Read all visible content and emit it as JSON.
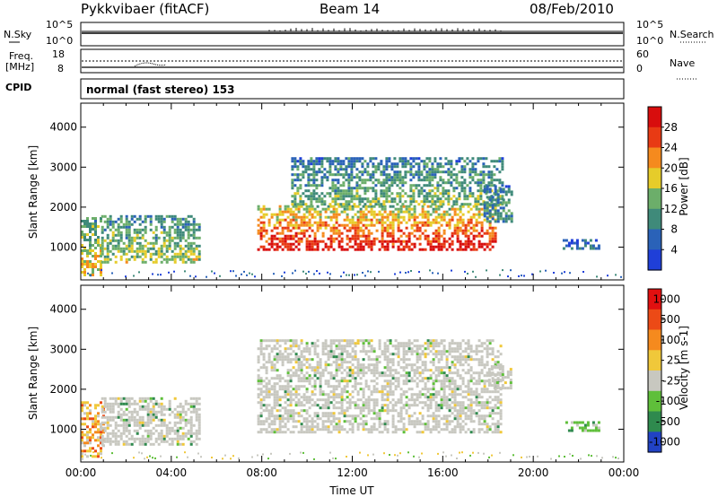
{
  "header": {
    "station": "Pykkvibaer (fitACF)",
    "beam": "Beam 14",
    "date": "08/Feb/2010"
  },
  "panels": {
    "sky": {
      "label": "N.Sky",
      "left_ticks": [
        "10^5",
        "10^0"
      ],
      "right_label": "N.Search",
      "right_ticks": [
        "10^5",
        "10^0"
      ]
    },
    "freq": {
      "label_line1": "Freq.",
      "label_line2": "[MHz]",
      "left_ticks": [
        "18",
        "8"
      ],
      "right_label": "Nave",
      "right_ticks": [
        "60",
        "0"
      ]
    },
    "cpid": {
      "label": "CPID",
      "text": "normal (fast stereo) 153"
    }
  },
  "chart_data": [
    {
      "type": "heatmap",
      "title": "",
      "xlabel": "",
      "ylabel": "Slant Range [km]",
      "xlim": [
        0,
        24
      ],
      "ylim": [
        180,
        4600
      ],
      "y_ticks": [
        "1000",
        "2000",
        "3000",
        "4000"
      ],
      "colorbar": {
        "label": "Power [dB]",
        "ticks": [
          "4",
          "8",
          "12",
          "16",
          "20",
          "24",
          "28"
        ],
        "colors": [
          "#1f3fd8",
          "#2a62b8",
          "#3f8a7a",
          "#6cae6a",
          "#e6cc2a",
          "#f58a1e",
          "#e83a14",
          "#d80d0d"
        ]
      },
      "regions": [
        {
          "t": [
            0.0,
            0.9
          ],
          "r": [
            300,
            1750
          ],
          "level": 0.55
        },
        {
          "t": [
            0.9,
            5.2
          ],
          "r": [
            650,
            1800
          ],
          "level": 0.45
        },
        {
          "t": [
            7.8,
            18.3
          ],
          "r": [
            950,
            2050
          ],
          "level": 0.88
        },
        {
          "t": [
            9.3,
            18.6
          ],
          "r": [
            2050,
            3250
          ],
          "level": 0.38
        },
        {
          "t": [
            17.8,
            19.0
          ],
          "r": [
            1650,
            2550
          ],
          "level": 0.3
        },
        {
          "t": [
            21.3,
            22.9
          ],
          "r": [
            950,
            1200
          ],
          "level": 0.2
        }
      ]
    },
    {
      "type": "heatmap",
      "title": "",
      "xlabel": "Time UT",
      "ylabel": "Slant Range [km]",
      "xlim": [
        0,
        24
      ],
      "ylim": [
        180,
        4600
      ],
      "x_ticks": [
        "00:00",
        "04:00",
        "08:00",
        "12:00",
        "16:00",
        "20:00",
        "00:00"
      ],
      "y_ticks": [
        "1000",
        "2000",
        "3000",
        "4000"
      ],
      "colorbar": {
        "label": "Velocity [m s-1]",
        "ticks": [
          "1000",
          "500",
          "100",
          "25",
          "-25",
          "-100",
          "-500",
          "-1000"
        ],
        "colors": [
          "#2142c4",
          "#2f8a4e",
          "#5fbf3a",
          "#c8c8c0",
          "#f0c83a",
          "#f58a1e",
          "#ec4a16",
          "#e11010"
        ]
      },
      "regions": [
        {
          "t": [
            0.0,
            1.0
          ],
          "r": [
            300,
            1700
          ],
          "level": -0.2
        },
        {
          "t": [
            0.9,
            5.2
          ],
          "r": [
            650,
            1800
          ],
          "level": 0.0
        },
        {
          "t": [
            7.8,
            18.6
          ],
          "r": [
            950,
            3250
          ],
          "level": 0.0
        },
        {
          "t": [
            18.0,
            19.0
          ],
          "r": [
            2000,
            2600
          ],
          "level": 0.0
        },
        {
          "t": [
            21.3,
            22.9
          ],
          "r": [
            950,
            1200
          ],
          "level": 0.5
        }
      ]
    }
  ]
}
